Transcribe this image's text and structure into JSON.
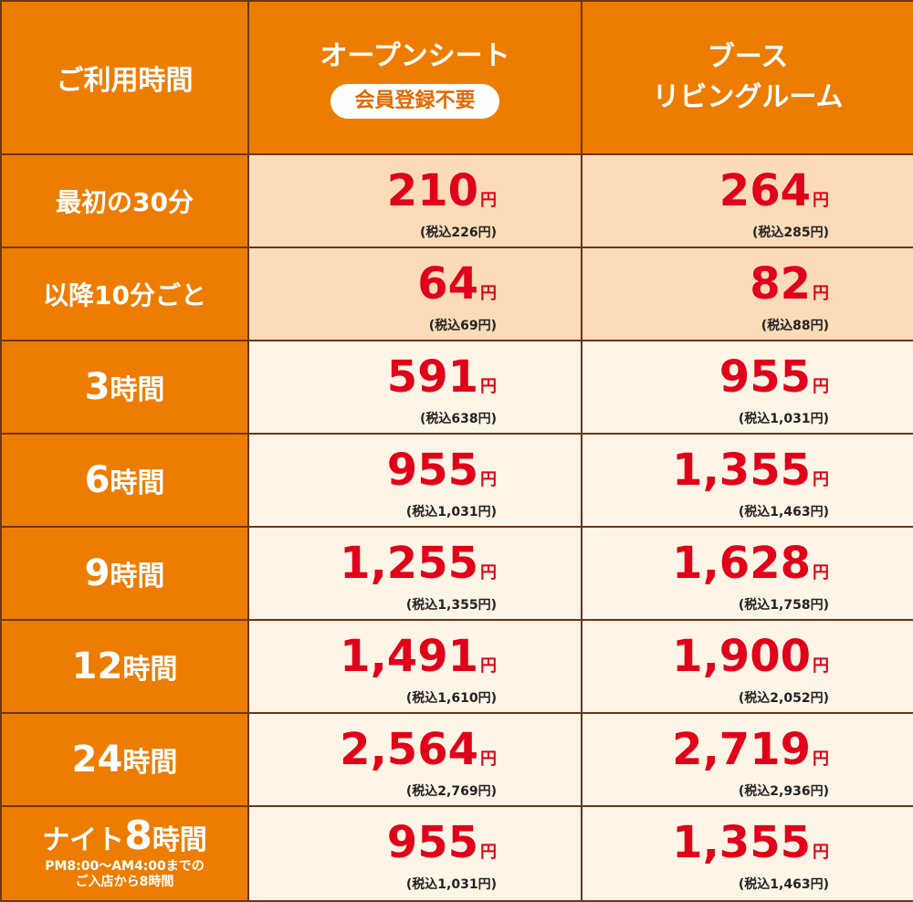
{
  "header": {
    "usage_time": "ご利用時間",
    "col1_title": "オープンシート",
    "col1_badge": "会員登録不要",
    "col2_line1": "ブース",
    "col2_line2": "リビングルーム"
  },
  "yen": "円",
  "rows": [
    {
      "label": "最初の30分",
      "open": {
        "price": "210",
        "tax": "(税込226円)"
      },
      "booth": {
        "price": "264",
        "tax": "(税込285円)"
      }
    },
    {
      "label": "以降10分ごと",
      "open": {
        "price": "64",
        "tax": "(税込69円)"
      },
      "booth": {
        "price": "82",
        "tax": "(税込88円)"
      }
    },
    {
      "label_num": "3",
      "label_suffix": "時間",
      "open": {
        "price": "591",
        "tax": "(税込638円)"
      },
      "booth": {
        "price": "955",
        "tax": "(税込1,031円)"
      }
    },
    {
      "label_num": "6",
      "label_suffix": "時間",
      "open": {
        "price": "955",
        "tax": "(税込1,031円)"
      },
      "booth": {
        "price": "1,355",
        "tax": "(税込1,463円)"
      }
    },
    {
      "label_num": "9",
      "label_suffix": "時間",
      "open": {
        "price": "1,255",
        "tax": "(税込1,355円)"
      },
      "booth": {
        "price": "1,628",
        "tax": "(税込1,758円)"
      }
    },
    {
      "label_num": "12",
      "label_suffix": "時間",
      "open": {
        "price": "1,491",
        "tax": "(税込1,610円)"
      },
      "booth": {
        "price": "1,900",
        "tax": "(税込2,052円)"
      }
    },
    {
      "label_num": "24",
      "label_suffix": "時間",
      "open": {
        "price": "2,564",
        "tax": "(税込2,769円)"
      },
      "booth": {
        "price": "2,719",
        "tax": "(税込2,936円)"
      }
    },
    {
      "night_prefix": "ナイト",
      "label_num": "8",
      "label_suffix": "時間",
      "note_line1": "PM8:00～AM4:00までの",
      "note_line2": "ご入店から8時間",
      "open": {
        "price": "955",
        "tax": "(税込1,031円)"
      },
      "booth": {
        "price": "1,355",
        "tax": "(税込1,463円)"
      }
    }
  ],
  "colors": {
    "header_bg": "#ed7d00",
    "peach_bg": "#fcdcb8",
    "cream_bg": "#fef5e7",
    "price_red": "#e0001a",
    "border": "#6b3517"
  }
}
